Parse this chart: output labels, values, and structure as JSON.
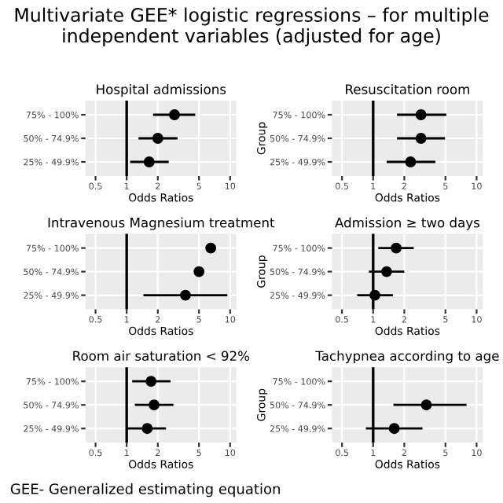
{
  "chart_data": [
    {
      "type": "scatter",
      "orientation": "horizontal",
      "title": "Hospital admissions",
      "xlabel": "Odds Ratios",
      "categories": [
        "75% - 100%",
        "50% - 74.9%",
        "25% - 49.9%"
      ],
      "values": [
        2.9,
        2.0,
        1.65
      ],
      "errors": [
        [
          1.8,
          4.6
        ],
        [
          1.3,
          3.1
        ],
        [
          1.08,
          2.55
        ]
      ],
      "color": "#000000",
      "marker": "circle",
      "log": "x",
      "xlim": [
        0.4,
        11.5
      ],
      "xticks": [
        0.5,
        1,
        2,
        5,
        10
      ],
      "ref_lines": [
        {
          "axis": "x",
          "value": 1,
          "color": "#000000"
        }
      ],
      "grid": true,
      "legend": false
    },
    {
      "type": "scatter",
      "orientation": "horizontal",
      "title": "Resuscitation room",
      "xlabel": "Odds Ratios",
      "ylabel": "Group",
      "categories": [
        "75% - 100%",
        "50% - 74.9%",
        "25% - 49.9%"
      ],
      "values": [
        2.9,
        2.9,
        2.3
      ],
      "errors": [
        [
          1.7,
          5.1
        ],
        [
          1.7,
          4.95
        ],
        [
          1.35,
          4.0
        ]
      ],
      "color": "#000000",
      "marker": "circle",
      "log": "x",
      "xlim": [
        0.4,
        11.5
      ],
      "xticks": [
        0.5,
        1,
        2,
        5,
        10
      ],
      "ref_lines": [
        {
          "axis": "x",
          "value": 1,
          "color": "#000000"
        }
      ],
      "grid": true,
      "legend": false
    },
    {
      "type": "scatter",
      "orientation": "horizontal",
      "title": "Intravenous Magnesium treatment",
      "xlabel": "Odds Ratios",
      "categories": [
        "75% - 100%",
        "50% - 74.9%",
        "25% - 49.9%"
      ],
      "values": [
        6.5,
        5.0,
        3.7
      ],
      "errors": [
        null,
        null,
        [
          1.45,
          9.4
        ]
      ],
      "color": "#000000",
      "marker": "circle",
      "log": "x",
      "xlim": [
        0.4,
        11.5
      ],
      "xticks": [
        0.5,
        1,
        2,
        5,
        10
      ],
      "ref_lines": [
        {
          "axis": "x",
          "value": 1,
          "color": "#000000"
        }
      ],
      "grid": true,
      "legend": false
    },
    {
      "type": "scatter",
      "orientation": "horizontal",
      "title": "Admission ≥ two days",
      "xlabel": "Odds Ratios",
      "ylabel": "Group",
      "categories": [
        "75% - 100%",
        "50% - 74.9%",
        "25% - 49.9%"
      ],
      "values": [
        1.67,
        1.35,
        1.04
      ],
      "errors": [
        [
          1.12,
          2.47
        ],
        [
          0.91,
          2.0
        ],
        [
          0.7,
          1.55
        ]
      ],
      "color": "#000000",
      "marker": "circle",
      "log": "x",
      "xlim": [
        0.4,
        11.5
      ],
      "xticks": [
        0.5,
        1,
        2,
        5,
        10
      ],
      "ref_lines": [
        {
          "axis": "x",
          "value": 1,
          "color": "#000000"
        }
      ],
      "grid": true,
      "legend": false
    },
    {
      "type": "scatter",
      "orientation": "horizontal",
      "title": "Room air saturation < 92%",
      "xlabel": "Odds Ratios",
      "categories": [
        "75% - 100%",
        "50% - 74.9%",
        "25% - 49.9%"
      ],
      "values": [
        1.72,
        1.84,
        1.58
      ],
      "errors": [
        [
          1.13,
          2.65
        ],
        [
          1.2,
          2.83
        ],
        [
          1.0,
          2.4
        ]
      ],
      "color": "#000000",
      "marker": "circle",
      "log": "x",
      "xlim": [
        0.4,
        11.5
      ],
      "xticks": [
        0.5,
        1,
        2,
        5,
        10
      ],
      "ref_lines": [
        {
          "axis": "x",
          "value": 1,
          "color": "#000000"
        }
      ],
      "grid": true,
      "legend": false
    },
    {
      "type": "scatter",
      "orientation": "horizontal",
      "title": "Tachypnea according to age",
      "xlabel": "Odds Ratios",
      "ylabel": "Group",
      "categories": [
        "75% - 100%",
        "50% - 74.9%",
        "25% - 49.9%"
      ],
      "values": [
        null,
        3.27,
        1.6
      ],
      "errors": [
        null,
        [
          1.57,
          8.0
        ],
        [
          0.85,
          3.0
        ]
      ],
      "color": "#000000",
      "marker": "circle",
      "log": "x",
      "xlim": [
        0.4,
        11.5
      ],
      "xticks": [
        0.5,
        1,
        2,
        5,
        10
      ],
      "ref_lines": [
        {
          "axis": "x",
          "value": 1,
          "color": "#000000"
        }
      ],
      "grid": true,
      "legend": false,
      "annotations": [
        "Multivariate GEE* logistic regressions – for multiple independent variables (adjusted for age)",
        "GEE- Generalized estimating equation"
      ]
    }
  ]
}
